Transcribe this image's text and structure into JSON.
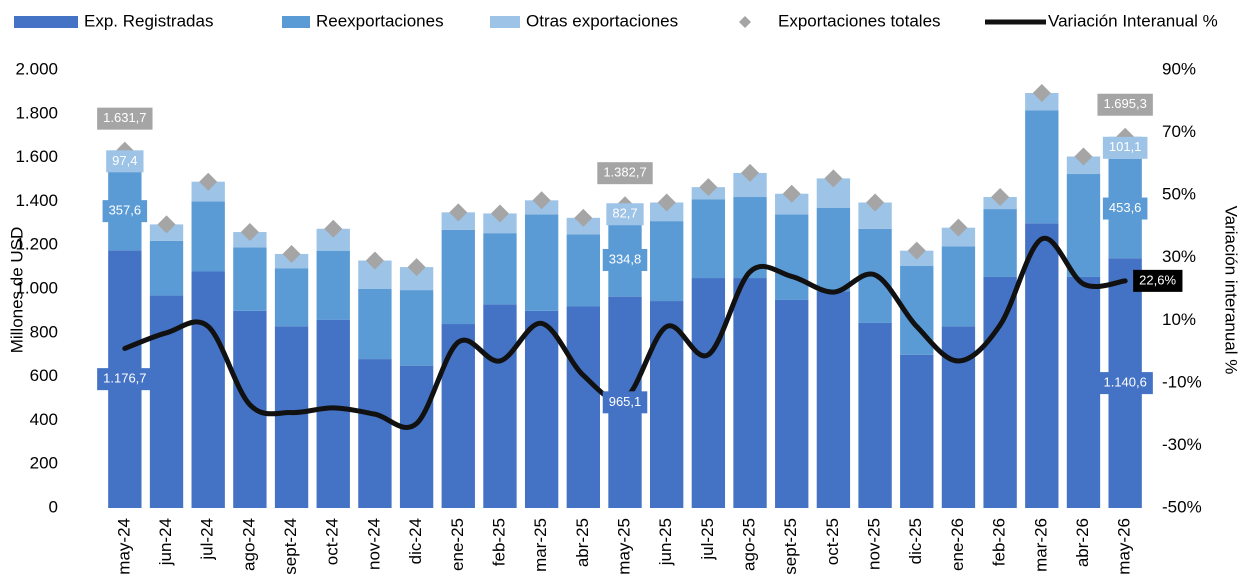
{
  "chart_data": {
    "type": "bar",
    "stacked": true,
    "y_axis_label": "Millones de USD",
    "y2_axis_label": "Variación interanual %",
    "categories": [
      "may-24",
      "jun-24",
      "jul-24",
      "ago-24",
      "sept-24",
      "oct-24",
      "nov-24",
      "dic-24",
      "ene-25",
      "feb-25",
      "mar-25",
      "abr-25",
      "may-25",
      "jun-25",
      "jul-25",
      "ago-25",
      "sept-25",
      "oct-25",
      "nov-25",
      "dic-25",
      "ene-26",
      "feb-26",
      "mar-26",
      "abr-26",
      "may-26"
    ],
    "ylim": [
      0,
      2000
    ],
    "yticks": [
      0,
      200,
      400,
      600,
      800,
      {
        "value": 1000,
        "label": "1.000"
      },
      {
        "value": 1200,
        "label": "1.200"
      },
      {
        "value": 1400,
        "label": "1.400"
      },
      {
        "value": 1600,
        "label": "1.600"
      },
      {
        "value": 1800,
        "label": "1.800"
      },
      {
        "value": 2000,
        "label": "2.000"
      }
    ],
    "y2lim": [
      -50,
      90
    ],
    "y2ticks": [
      {
        "value": -50,
        "label": "-50%"
      },
      {
        "value": -30,
        "label": "-30%"
      },
      {
        "value": -10,
        "label": "-10%"
      },
      {
        "value": 10,
        "label": "10%"
      },
      {
        "value": 30,
        "label": "30%"
      },
      {
        "value": 50,
        "label": "50%"
      },
      {
        "value": 70,
        "label": "70%"
      },
      {
        "value": 90,
        "label": "90%"
      }
    ],
    "series": [
      {
        "name": "Exp. Registradas",
        "type": "bar",
        "color": "#4472c4",
        "values": [
          1176.7,
          970,
          1080,
          900,
          830,
          860,
          680,
          650,
          840,
          930,
          900,
          920,
          965.1,
          945,
          1050,
          1050,
          950,
          990,
          845,
          700,
          830,
          1055,
          1300,
          1055,
          1140.6
        ],
        "value_labels": [
          "1.176,7",
          null,
          null,
          null,
          null,
          null,
          null,
          null,
          null,
          null,
          null,
          null,
          "965,1",
          null,
          null,
          null,
          null,
          null,
          null,
          null,
          null,
          null,
          null,
          null,
          "1.140,6"
        ]
      },
      {
        "name": "Reexportaciones",
        "type": "bar",
        "color": "#5b9bd5",
        "values": [
          357.6,
          250,
          320,
          290,
          265,
          315,
          320,
          345,
          430,
          325,
          440,
          330,
          334.8,
          365,
          360,
          370,
          390,
          380,
          430,
          405,
          365,
          310,
          515,
          470,
          453.6
        ],
        "value_labels": [
          "357,6",
          null,
          null,
          null,
          null,
          null,
          null,
          null,
          null,
          null,
          null,
          null,
          "334,8",
          null,
          null,
          null,
          null,
          null,
          null,
          null,
          null,
          null,
          null,
          null,
          "453,6"
        ]
      },
      {
        "name": "Otras exportaciones",
        "type": "bar",
        "color": "#9dc3e6",
        "values": [
          97.4,
          75,
          90,
          70,
          65,
          100,
          130,
          105,
          80,
          90,
          65,
          75,
          82.7,
          85,
          55,
          110,
          95,
          135,
          120,
          70,
          85,
          55,
          80,
          80,
          101.1
        ],
        "value_labels": [
          "97,4",
          null,
          null,
          null,
          null,
          null,
          null,
          null,
          null,
          null,
          null,
          null,
          "82,7",
          null,
          null,
          null,
          null,
          null,
          null,
          null,
          null,
          null,
          null,
          null,
          "101,1"
        ]
      },
      {
        "name": "Exportaciones  totales",
        "type": "scatter",
        "color": "#a5a5a5",
        "values": [
          1631.7,
          1295,
          1490,
          1260,
          1160,
          1275,
          1130,
          1100,
          1350,
          1345,
          1405,
          1325,
          1382.7,
          1395,
          1465,
          1530,
          1435,
          1505,
          1395,
          1175,
          1280,
          1420,
          1895,
          1605,
          1695.3
        ],
        "value_labels": [
          "1.631,7",
          null,
          null,
          null,
          null,
          null,
          null,
          null,
          null,
          null,
          null,
          null,
          "1.382,7",
          null,
          null,
          null,
          null,
          null,
          null,
          null,
          null,
          null,
          null,
          null,
          "1.695,3"
        ]
      },
      {
        "name": "Variación Interanual %",
        "type": "line",
        "axis": "y2",
        "color": "#111111",
        "values": [
          1,
          6,
          8,
          -17,
          -19.5,
          -18,
          -20,
          -23,
          3,
          -3,
          9,
          -7.6,
          -15,
          8,
          -1,
          25.5,
          24,
          19,
          24.5,
          8,
          -3,
          8.5,
          36,
          21.6,
          22.6
        ],
        "value_labels": [
          null,
          null,
          null,
          null,
          null,
          null,
          null,
          null,
          null,
          null,
          null,
          null,
          null,
          null,
          null,
          null,
          null,
          null,
          null,
          null,
          null,
          null,
          null,
          null,
          "22,6%"
        ]
      }
    ]
  }
}
